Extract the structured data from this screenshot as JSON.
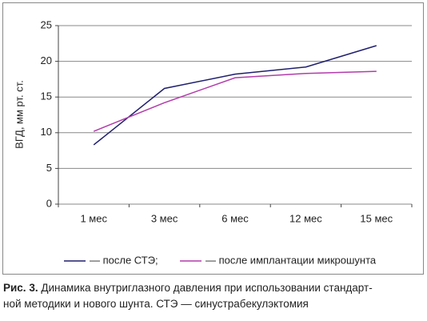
{
  "chart_data": {
    "type": "line",
    "y_label": "ВГД, мм рт. ст.",
    "categories": [
      "1 мес",
      "3 мес",
      "6 мес",
      "12 мес",
      "15 мес"
    ],
    "series": [
      {
        "name": "— после СТЭ;",
        "color": "#1f1f6e",
        "values": [
          8.3,
          16.2,
          18.2,
          19.2,
          22.2
        ]
      },
      {
        "name": "— после имплантации микрошунта",
        "color": "#b23cab",
        "values": [
          10.2,
          14.2,
          17.7,
          18.3,
          18.6
        ]
      }
    ],
    "ylim": [
      0,
      25
    ],
    "yticks": [
      0,
      5,
      10,
      15,
      20,
      25
    ],
    "grid": true,
    "legend": "bottom"
  },
  "caption": {
    "label": "Рис. 3.",
    "lines": [
      "Динамика внутриглазного давления при использовании стандарт-",
      "ной методики и нового шунта. СТЭ — синустрабекулэктомия"
    ]
  }
}
